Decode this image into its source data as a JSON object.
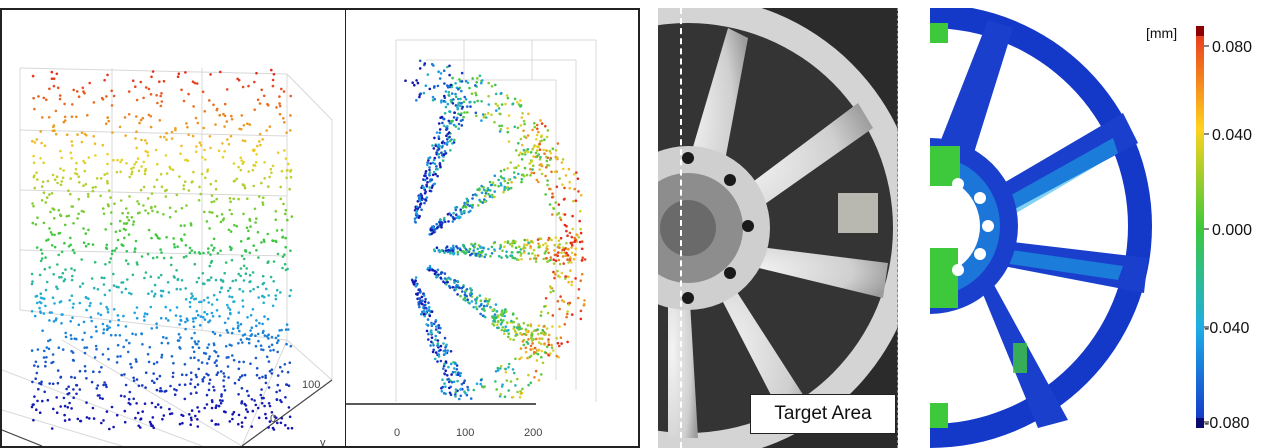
{
  "panel_3d_scatter": {
    "axis_ticks": [
      "100",
      "0"
    ],
    "axis_label": "y"
  },
  "panel_front_scatter": {
    "x_ticks": [
      "0",
      "100",
      "200"
    ]
  },
  "panel_photo": {
    "caption": "Target Area"
  },
  "panel_deviation_map": {
    "unit": "[mm]",
    "colorbar_ticks": [
      "0.080",
      "0.040",
      "0.000",
      "-0.040",
      "-0.080"
    ],
    "colors": {
      "max": "#8b0000",
      "high": "#e8321e",
      "mid_high": "#ffd21e",
      "zero": "#3ec83c",
      "mid_low": "#1eaee6",
      "low": "#1430c8",
      "min": "#0a0a6e"
    }
  }
}
